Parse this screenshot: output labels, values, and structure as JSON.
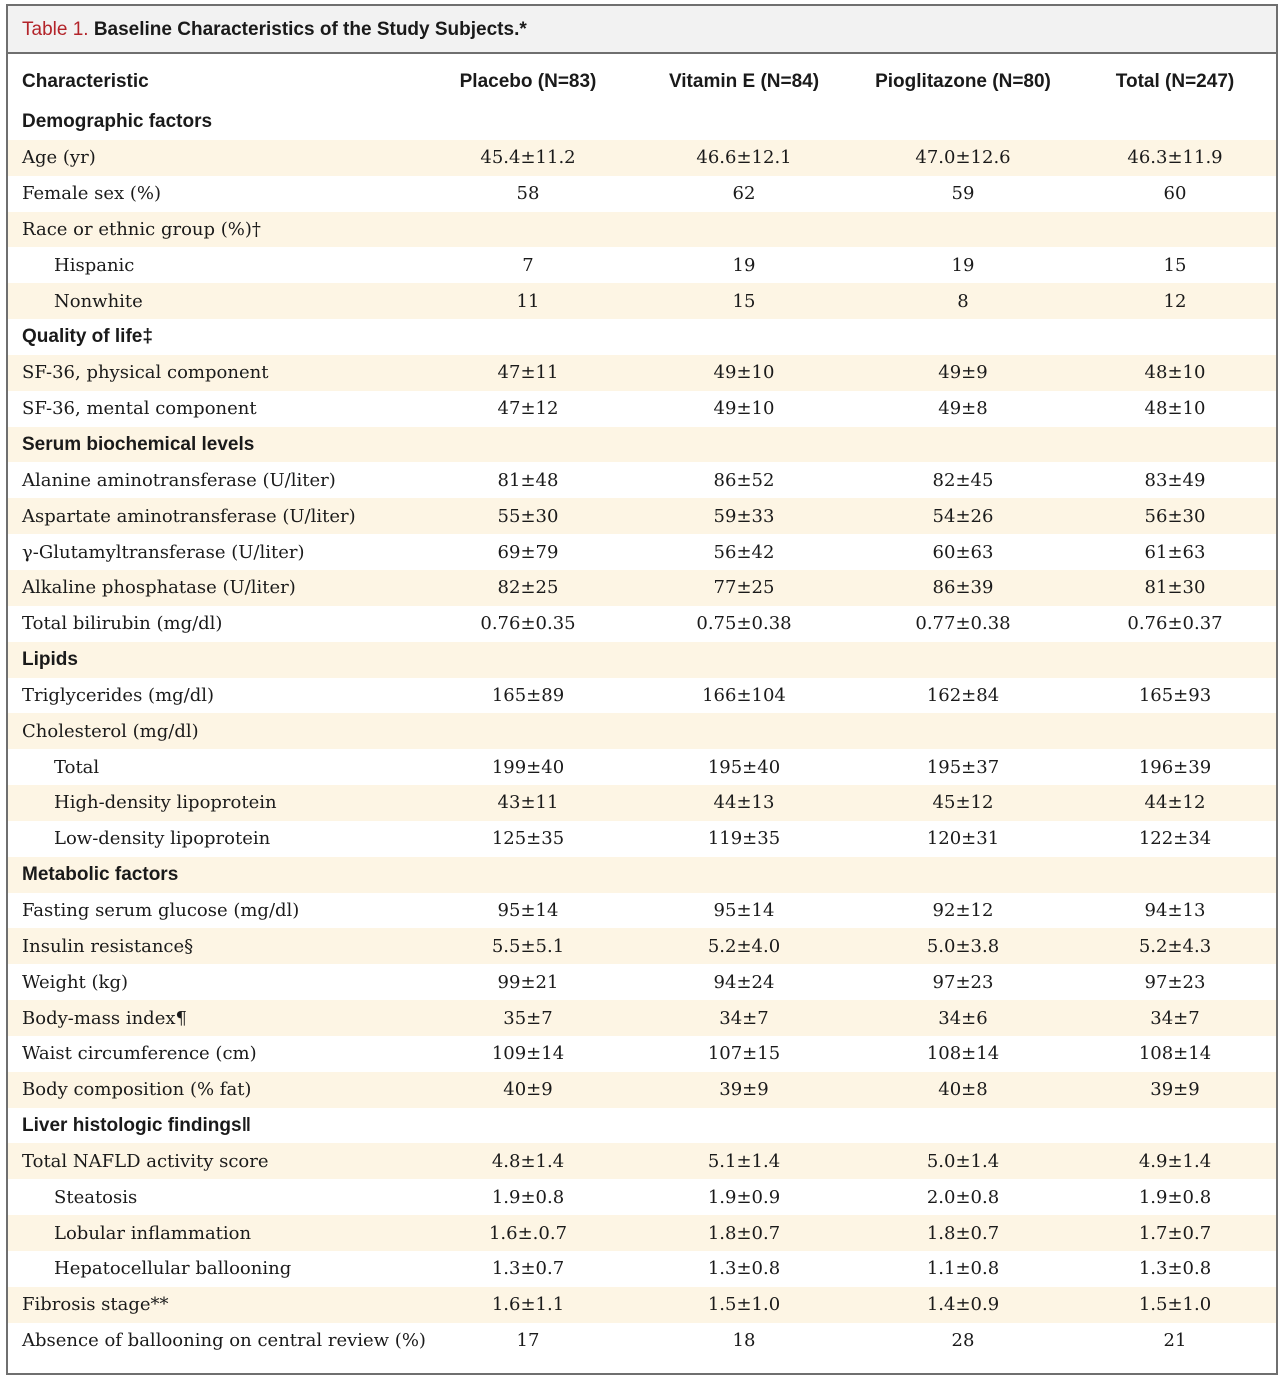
{
  "title": {
    "label": "Table 1.",
    "caption": "Baseline Characteristics of the Study Subjects.*"
  },
  "colors": {
    "label": "#b3242a",
    "shade": "#fdf5e4",
    "border": "#6f6f6f",
    "title_bg": "#f2f2f2"
  },
  "headers": [
    "Characteristic",
    "Placebo (N=83)",
    "Vitamin E (N=84)",
    "Pioglitazone (N=80)",
    "Total (N=247)"
  ],
  "rows": [
    {
      "type": "section",
      "label": "Demographic factors",
      "values": [
        "",
        "",
        "",
        ""
      ],
      "shade": false
    },
    {
      "type": "row",
      "label": "Age (yr)",
      "values": [
        "45.4±11.2",
        "46.6±12.1",
        "47.0±12.6",
        "46.3±11.9"
      ],
      "shade": true
    },
    {
      "type": "row",
      "label": "Female sex (%)",
      "values": [
        "58",
        "62",
        "59",
        "60"
      ],
      "shade": false
    },
    {
      "type": "row",
      "label": "Race or ethnic group (%)†",
      "values": [
        "",
        "",
        "",
        ""
      ],
      "shade": true
    },
    {
      "type": "sub",
      "label": "Hispanic",
      "values": [
        "7",
        "19",
        "19",
        "15"
      ],
      "shade": false
    },
    {
      "type": "sub",
      "label": "Nonwhite",
      "values": [
        "11",
        "15",
        "8",
        "12"
      ],
      "shade": true
    },
    {
      "type": "section",
      "label": "Quality of life‡",
      "values": [
        "",
        "",
        "",
        ""
      ],
      "shade": false
    },
    {
      "type": "row",
      "label": "SF-36, physical component",
      "values": [
        "47±11",
        "49±10",
        "49±9",
        "48±10"
      ],
      "shade": true
    },
    {
      "type": "row",
      "label": "SF-36, mental component",
      "values": [
        "47±12",
        "49±10",
        "49±8",
        "48±10"
      ],
      "shade": false
    },
    {
      "type": "section",
      "label": "Serum biochemical levels",
      "values": [
        "",
        "",
        "",
        ""
      ],
      "shade": true
    },
    {
      "type": "row",
      "label": "Alanine aminotransferase (U/liter)",
      "values": [
        "81±48",
        "86±52",
        "82±45",
        "83±49"
      ],
      "shade": false
    },
    {
      "type": "row",
      "label": "Aspartate aminotransferase (U/liter)",
      "values": [
        "55±30",
        "59±33",
        "54±26",
        "56±30"
      ],
      "shade": true
    },
    {
      "type": "row",
      "label": "γ-Glutamyltransferase (U/liter)",
      "values": [
        "69±79",
        "56±42",
        "60±63",
        "61±63"
      ],
      "shade": false
    },
    {
      "type": "row",
      "label": "Alkaline phosphatase (U/liter)",
      "values": [
        "82±25",
        "77±25",
        "86±39",
        "81±30"
      ],
      "shade": true
    },
    {
      "type": "row",
      "label": "Total bilirubin (mg/dl)",
      "values": [
        "0.76±0.35",
        "0.75±0.38",
        "0.77±0.38",
        "0.76±0.37"
      ],
      "shade": false
    },
    {
      "type": "section",
      "label": "Lipids",
      "values": [
        "",
        "",
        "",
        ""
      ],
      "shade": true
    },
    {
      "type": "row",
      "label": "Triglycerides (mg/dl)",
      "values": [
        "165±89",
        "166±104",
        "162±84",
        "165±93"
      ],
      "shade": false
    },
    {
      "type": "row",
      "label": "Cholesterol (mg/dl)",
      "values": [
        "",
        "",
        "",
        ""
      ],
      "shade": true
    },
    {
      "type": "sub",
      "label": "Total",
      "values": [
        "199±40",
        "195±40",
        "195±37",
        "196±39"
      ],
      "shade": false
    },
    {
      "type": "sub",
      "label": "High-density lipoprotein",
      "values": [
        "43±11",
        "44±13",
        "45±12",
        "44±12"
      ],
      "shade": true
    },
    {
      "type": "sub",
      "label": "Low-density lipoprotein",
      "values": [
        "125±35",
        "119±35",
        "120±31",
        "122±34"
      ],
      "shade": false
    },
    {
      "type": "section",
      "label": "Metabolic factors",
      "values": [
        "",
        "",
        "",
        ""
      ],
      "shade": true
    },
    {
      "type": "row",
      "label": "Fasting serum glucose (mg/dl)",
      "values": [
        "95±14",
        "95±14",
        "92±12",
        "94±13"
      ],
      "shade": false
    },
    {
      "type": "row",
      "label": "Insulin resistance§",
      "values": [
        "5.5±5.1",
        "5.2±4.0",
        "5.0±3.8",
        "5.2±4.3"
      ],
      "shade": true
    },
    {
      "type": "row",
      "label": "Weight (kg)",
      "values": [
        "99±21",
        "94±24",
        "97±23",
        "97±23"
      ],
      "shade": false
    },
    {
      "type": "row",
      "label": "Body-mass index¶",
      "values": [
        "35±7",
        "34±7",
        "34±6",
        "34±7"
      ],
      "shade": true
    },
    {
      "type": "row",
      "label": "Waist circumference (cm)",
      "values": [
        "109±14",
        "107±15",
        "108±14",
        "108±14"
      ],
      "shade": false
    },
    {
      "type": "row",
      "label": "Body composition (% fat)",
      "values": [
        "40±9",
        "39±9",
        "40±8",
        "39±9"
      ],
      "shade": true
    },
    {
      "type": "section",
      "label": "Liver histologic findings‖",
      "values": [
        "",
        "",
        "",
        ""
      ],
      "shade": false
    },
    {
      "type": "row",
      "label": "Total NAFLD activity score",
      "values": [
        "4.8±1.4",
        "5.1±1.4",
        "5.0±1.4",
        "4.9±1.4"
      ],
      "shade": true
    },
    {
      "type": "sub",
      "label": "Steatosis",
      "values": [
        "1.9±0.8",
        "1.9±0.9",
        "2.0±0.8",
        "1.9±0.8"
      ],
      "shade": false
    },
    {
      "type": "sub",
      "label": "Lobular inflammation",
      "values": [
        "1.6±.0.7",
        "1.8±0.7",
        "1.8±0.7",
        "1.7±0.7"
      ],
      "shade": true
    },
    {
      "type": "sub",
      "label": "Hepatocellular ballooning",
      "values": [
        "1.3±0.7",
        "1.3±0.8",
        "1.1±0.8",
        "1.3±0.8"
      ],
      "shade": false
    },
    {
      "type": "row",
      "label": "Fibrosis stage**",
      "values": [
        "1.6±1.1",
        "1.5±1.0",
        "1.4±0.9",
        "1.5±1.0"
      ],
      "shade": true
    },
    {
      "type": "row",
      "label": "Absence of ballooning on central review (%)",
      "values": [
        "17",
        "18",
        "28",
        "21"
      ],
      "shade": false
    }
  ]
}
